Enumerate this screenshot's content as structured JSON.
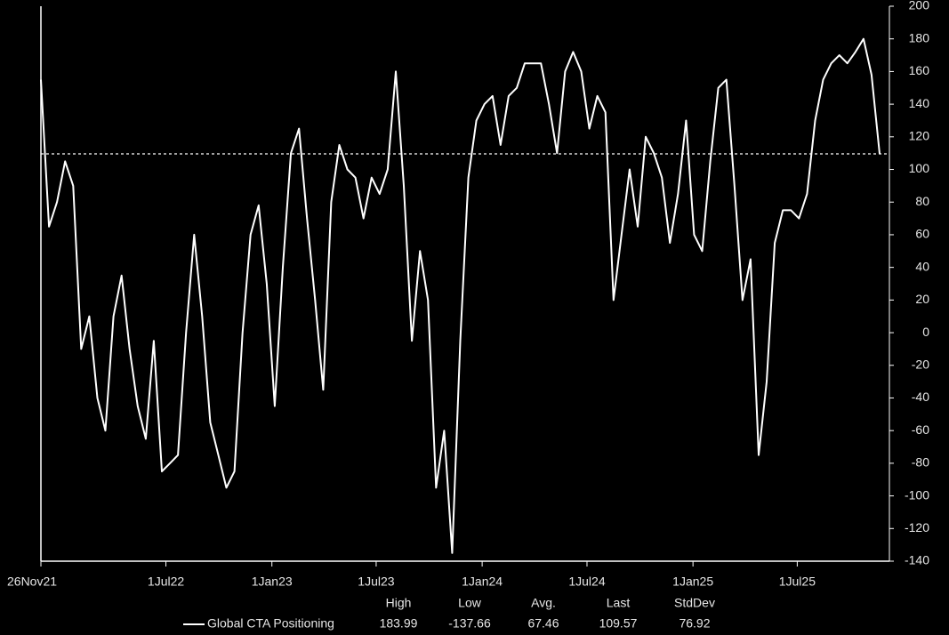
{
  "chart_data": {
    "type": "line",
    "x": [
      "2021-11-26",
      "2021-12-10",
      "2021-12-24",
      "2022-01-07",
      "2022-01-21",
      "2022-02-04",
      "2022-02-18",
      "2022-03-04",
      "2022-03-18",
      "2022-04-01",
      "2022-04-15",
      "2022-04-29",
      "2022-05-13",
      "2022-05-27",
      "2022-06-10",
      "2022-06-24",
      "2022-07-08",
      "2022-07-22",
      "2022-08-05",
      "2022-08-19",
      "2022-09-02",
      "2022-09-16",
      "2022-09-30",
      "2022-10-14",
      "2022-10-28",
      "2022-11-11",
      "2022-11-25",
      "2022-12-09",
      "2022-12-23",
      "2023-01-06",
      "2023-01-20",
      "2023-02-03",
      "2023-02-17",
      "2023-03-03",
      "2023-03-17",
      "2023-03-31",
      "2023-04-14",
      "2023-04-28",
      "2023-05-12",
      "2023-05-26",
      "2023-06-09",
      "2023-06-23",
      "2023-07-07",
      "2023-07-21",
      "2023-08-04",
      "2023-08-18",
      "2023-09-01",
      "2023-09-15",
      "2023-09-29",
      "2023-10-13",
      "2023-10-27",
      "2023-11-10",
      "2023-11-24",
      "2023-12-08",
      "2023-12-22",
      "2024-01-05",
      "2024-01-19",
      "2024-02-02",
      "2024-02-16",
      "2024-03-01",
      "2024-03-15",
      "2024-03-29",
      "2024-04-12",
      "2024-04-26",
      "2024-05-10",
      "2024-05-24",
      "2024-06-07",
      "2024-06-21",
      "2024-07-05",
      "2024-07-19",
      "2024-08-02",
      "2024-08-16",
      "2024-08-30",
      "2024-09-13",
      "2024-09-27",
      "2024-10-11",
      "2024-10-25",
      "2024-11-08",
      "2024-11-22",
      "2024-12-06",
      "2024-12-20",
      "2025-01-03",
      "2025-01-17",
      "2025-01-31",
      "2025-02-14",
      "2025-02-28",
      "2025-03-14",
      "2025-03-28",
      "2025-04-11",
      "2025-04-25",
      "2025-05-09",
      "2025-05-23",
      "2025-06-06",
      "2025-06-20",
      "2025-07-04",
      "2025-07-18",
      "2025-08-01",
      "2025-08-15",
      "2025-08-29",
      "2025-09-12",
      "2025-09-26",
      "2025-10-10",
      "2025-10-24",
      "2025-11-07",
      "2025-11-21"
    ],
    "series": [
      {
        "name": "Global CTA Positioning",
        "color": "#ffffff",
        "values": [
          155,
          65,
          80,
          105,
          90,
          -10,
          10,
          -40,
          -60,
          10,
          35,
          -10,
          -45,
          -65,
          -5,
          -85,
          -80,
          -75,
          0,
          60,
          10,
          -55,
          -75,
          -95,
          -85,
          0,
          60,
          78,
          30,
          -45,
          40,
          110,
          125,
          70,
          20,
          -35,
          80,
          115,
          100,
          95,
          70,
          95,
          85,
          100,
          160,
          90,
          -5,
          50,
          20,
          -95,
          -60,
          -135,
          -5,
          95,
          130,
          140,
          145,
          115,
          145,
          150,
          165,
          165,
          165,
          140,
          110,
          160,
          172,
          160,
          125,
          145,
          135,
          20,
          60,
          100,
          65,
          120,
          110,
          95,
          55,
          85,
          130,
          60,
          50,
          105,
          150,
          155,
          90,
          20,
          45,
          -75,
          -30,
          55,
          75,
          75,
          70,
          85,
          130,
          155,
          165,
          170,
          165,
          172,
          180,
          158,
          109.57
        ]
      }
    ],
    "xlim": [
      "2021-11-26",
      "2025-12-08"
    ],
    "xticks": [
      {
        "value": "2021-11-26",
        "label": "26Nov21"
      },
      {
        "value": "2022-07-01",
        "label": "1Jul22"
      },
      {
        "value": "2023-01-01",
        "label": "1Jan23"
      },
      {
        "value": "2023-07-01",
        "label": "1Jul23"
      },
      {
        "value": "2024-01-01",
        "label": "1Jan24"
      },
      {
        "value": "2024-07-01",
        "label": "1Jul24"
      },
      {
        "value": "2025-01-01",
        "label": "1Jan25"
      },
      {
        "value": "2025-07-01",
        "label": "1Jul25"
      }
    ],
    "ylim": [
      -140,
      200
    ],
    "yticks": [
      200,
      180,
      160,
      140,
      120,
      100,
      80,
      60,
      40,
      20,
      0,
      -20,
      -40,
      -60,
      -80,
      -100,
      -120,
      -140
    ],
    "stats": {
      "labels": [
        "High",
        "Low",
        "Avg.",
        "Last",
        "StdDev"
      ],
      "values": [
        183.99,
        -137.66,
        67.46,
        109.57,
        76.92
      ]
    }
  }
}
